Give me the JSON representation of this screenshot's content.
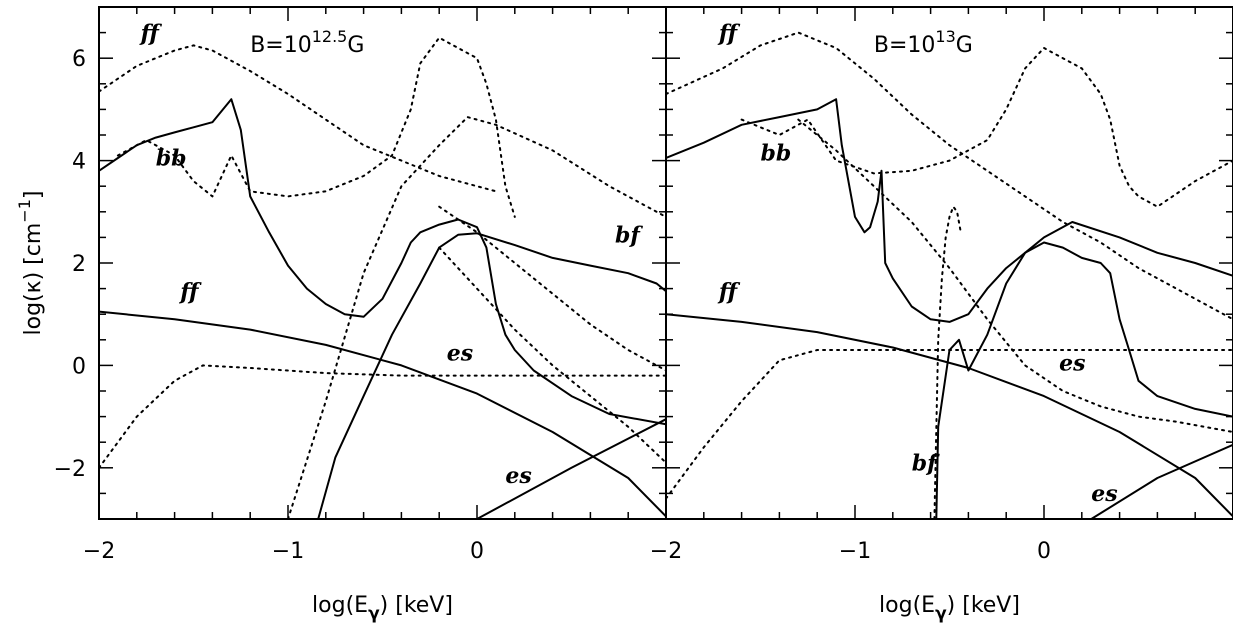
{
  "chart_data": [
    {
      "type": "line",
      "title_main": "B=10",
      "title_exp": "12.5",
      "title_unit": "G",
      "xlabel_pre": "log(E",
      "xlabel_sub": "γ",
      "xlabel_post": ")  [keV]",
      "ylabel_pre": "log(κ)  [cm",
      "ylabel_exp": "−1",
      "ylabel_post": "]",
      "xlim": [
        -2,
        1
      ],
      "ylim": [
        -3,
        7
      ],
      "xticks": [
        -2,
        -1,
        0
      ],
      "xticklabels": [
        "−2",
        "−1",
        "0"
      ],
      "yticks": [
        -2,
        0,
        2,
        4,
        6
      ],
      "yticklabels": [
        "−2",
        "0",
        "2",
        "4",
        "6"
      ],
      "annotations": [
        {
          "text": "ff",
          "x": -1.78,
          "y": 6.35
        },
        {
          "text": "bb",
          "x": -1.7,
          "y": 3.9
        },
        {
          "text": "bf",
          "x": 0.73,
          "y": 2.4
        },
        {
          "text": "ff",
          "x": -1.57,
          "y": 1.3
        },
        {
          "text": "es",
          "x": -0.16,
          "y": 0.1
        },
        {
          "text": "es",
          "x": 0.15,
          "y": -2.3
        }
      ],
      "series": [
        {
          "style": "solid",
          "x": [
            -2,
            -1.6,
            -1.2,
            -0.8,
            -0.4,
            0,
            0.4,
            0.8,
            1
          ],
          "y": [
            1.05,
            0.9,
            0.7,
            0.4,
            0.0,
            -0.55,
            -1.3,
            -2.2,
            -2.95
          ]
        },
        {
          "style": "solid",
          "x": [
            0,
            0.5,
            1
          ],
          "y": [
            -3,
            -2.0,
            -1.05
          ]
        },
        {
          "style": "solid",
          "x": [
            -0.84,
            -0.75,
            -0.6,
            -0.45,
            -0.3,
            -0.2,
            -0.1,
            0,
            0.2,
            0.4,
            0.6,
            0.8,
            0.95,
            1
          ],
          "y": [
            -3,
            -1.8,
            -0.6,
            0.6,
            1.6,
            2.3,
            2.55,
            2.58,
            2.35,
            2.1,
            1.95,
            1.8,
            1.6,
            1.45
          ]
        },
        {
          "style": "solid",
          "x": [
            -2,
            -1.9,
            -1.8,
            -1.7,
            -1.6,
            -1.5,
            -1.4,
            -1.3,
            -1.25,
            -1.2,
            -1.1,
            -1.0,
            -0.9,
            -0.8,
            -0.7,
            -0.6,
            -0.5,
            -0.4,
            -0.35,
            -0.3,
            -0.2,
            -0.1,
            0,
            0.05,
            0.1,
            0.15,
            0.2,
            0.3,
            0.5,
            0.7,
            1
          ],
          "y": [
            3.8,
            4.05,
            4.3,
            4.45,
            4.55,
            4.65,
            4.75,
            5.2,
            4.6,
            3.3,
            2.6,
            1.95,
            1.5,
            1.2,
            1.0,
            0.95,
            1.3,
            2.0,
            2.4,
            2.6,
            2.75,
            2.85,
            2.7,
            2.3,
            1.2,
            0.6,
            0.3,
            -0.1,
            -0.6,
            -0.95,
            -1.15
          ]
        },
        {
          "style": "dotted",
          "x": [
            -2,
            -1.8,
            -1.6,
            -1.5,
            -1.4,
            -1.2,
            -1.0,
            -0.8,
            -0.6,
            -0.4,
            -0.2,
            -0.1,
            0,
            0.1
          ],
          "y": [
            5.35,
            5.85,
            6.15,
            6.25,
            6.15,
            5.75,
            5.3,
            4.8,
            4.3,
            4.0,
            3.7,
            3.6,
            3.5,
            3.4
          ]
        },
        {
          "style": "dotted",
          "x": [
            -1.9,
            -1.75,
            -1.6,
            -1.5,
            -1.4,
            -1.3,
            -1.2,
            -1.0,
            -0.8,
            -0.6,
            -0.45,
            -0.35,
            -0.3,
            -0.2,
            -0.1,
            0,
            0.05,
            0.1,
            0.15,
            0.2
          ],
          "y": [
            4.1,
            4.4,
            4.1,
            3.6,
            3.3,
            4.1,
            3.4,
            3.3,
            3.4,
            3.7,
            4.1,
            5.0,
            5.9,
            6.4,
            6.2,
            6.0,
            5.5,
            4.8,
            3.5,
            2.9
          ]
        },
        {
          "style": "dotted",
          "x": [
            -1.0,
            -0.8,
            -0.6,
            -0.4,
            -0.2,
            -0.05,
            0.1,
            0.4,
            0.7,
            1.0
          ],
          "y": [
            -3,
            -0.7,
            1.8,
            3.5,
            4.3,
            4.85,
            4.7,
            4.2,
            3.5,
            2.9
          ]
        },
        {
          "style": "dotted",
          "x": [
            -0.2,
            0,
            0.2,
            0.4,
            0.6,
            0.8,
            1.0
          ],
          "y": [
            3.1,
            2.6,
            2.0,
            1.4,
            0.8,
            0.3,
            -0.1
          ]
        },
        {
          "style": "dotted",
          "x": [
            -0.2,
            0,
            0.2,
            0.4,
            0.6,
            0.8,
            1.0
          ],
          "y": [
            2.3,
            1.5,
            0.7,
            0.0,
            -0.6,
            -1.2,
            -1.9
          ]
        },
        {
          "style": "dotted",
          "x": [
            -2,
            -1.8,
            -1.6,
            -1.45,
            -1.2,
            -0.8,
            -0.4,
            0,
            0.5,
            1.0
          ],
          "y": [
            -2.0,
            -1.0,
            -0.3,
            0.0,
            -0.05,
            -0.15,
            -0.2,
            -0.2,
            -0.2,
            -0.2
          ]
        }
      ]
    },
    {
      "type": "line",
      "title_main": "B=10",
      "title_exp": "13",
      "title_unit": "G",
      "xlabel_pre": "log(E",
      "xlabel_sub": "γ",
      "xlabel_post": ")  [keV]",
      "xlim": [
        -2,
        1
      ],
      "ylim": [
        -3,
        7
      ],
      "xticks": [
        -2,
        -1,
        0
      ],
      "xticklabels": [
        "−2",
        "−1",
        "0"
      ],
      "yticks": [
        -2,
        0,
        2,
        4,
        6
      ],
      "annotations": [
        {
          "text": "ff",
          "x": -1.72,
          "y": 6.35
        },
        {
          "text": "bb",
          "x": -1.5,
          "y": 4.0
        },
        {
          "text": "ff",
          "x": -1.72,
          "y": 1.3
        },
        {
          "text": "es",
          "x": 0.08,
          "y": -0.1
        },
        {
          "text": "bf",
          "x": -0.7,
          "y": -2.05
        },
        {
          "text": "es",
          "x": 0.25,
          "y": -2.65
        }
      ],
      "series": [
        {
          "style": "solid",
          "x": [
            -2,
            -1.6,
            -1.2,
            -0.8,
            -0.4,
            0,
            0.4,
            0.8,
            1
          ],
          "y": [
            1.0,
            0.85,
            0.65,
            0.35,
            -0.05,
            -0.6,
            -1.3,
            -2.2,
            -2.95
          ]
        },
        {
          "style": "solid",
          "x": [
            0.25,
            0.6,
            1
          ],
          "y": [
            -3,
            -2.2,
            -1.55
          ]
        },
        {
          "style": "solid",
          "x": [
            -0.57,
            -0.56,
            -0.5,
            -0.45,
            -0.4,
            -0.3,
            -0.2,
            -0.1,
            0,
            0.15,
            0.4,
            0.6,
            0.8,
            1
          ],
          "y": [
            -3,
            -1.2,
            0.3,
            0.5,
            -0.1,
            0.6,
            1.6,
            2.2,
            2.5,
            2.8,
            2.5,
            2.2,
            2.0,
            1.75
          ]
        },
        {
          "style": "solid",
          "x": [
            -2,
            -1.8,
            -1.6,
            -1.4,
            -1.2,
            -1.1,
            -1.07,
            -1.0,
            -0.95,
            -0.92,
            -0.88,
            -0.86,
            -0.84,
            -0.8,
            -0.7,
            -0.6,
            -0.5,
            -0.4,
            -0.3,
            -0.2,
            -0.1,
            0,
            0.1,
            0.2,
            0.3,
            0.35,
            0.4,
            0.45,
            0.5,
            0.6,
            0.8,
            1
          ],
          "y": [
            4.05,
            4.35,
            4.7,
            4.85,
            5.0,
            5.2,
            4.3,
            2.9,
            2.6,
            2.7,
            3.2,
            3.8,
            2.0,
            1.7,
            1.15,
            0.9,
            0.85,
            1.0,
            1.5,
            1.9,
            2.2,
            2.4,
            2.3,
            2.1,
            2.0,
            1.8,
            0.9,
            0.3,
            -0.3,
            -0.6,
            -0.85,
            -1.0
          ]
        },
        {
          "style": "dotted",
          "x": [
            -2,
            -1.7,
            -1.5,
            -1.3,
            -1.1,
            -0.9,
            -0.7,
            -0.5,
            -0.3,
            -0.1,
            0.1,
            0.3,
            0.5,
            0.7,
            1.0
          ],
          "y": [
            5.3,
            5.8,
            6.25,
            6.5,
            6.2,
            5.6,
            4.9,
            4.3,
            3.8,
            3.3,
            2.8,
            2.4,
            1.9,
            1.5,
            0.9
          ]
        },
        {
          "style": "dotted",
          "x": [
            -1.6,
            -1.4,
            -1.25,
            -1.1,
            -0.9,
            -0.7,
            -0.5,
            -0.3,
            -0.2,
            -0.1,
            0,
            0.1,
            0.2,
            0.3,
            0.35,
            0.4,
            0.45,
            0.5,
            0.6,
            0.8,
            1.0
          ],
          "y": [
            4.8,
            4.5,
            4.8,
            4.0,
            3.75,
            3.8,
            4.0,
            4.4,
            5.0,
            5.8,
            6.2,
            6.0,
            5.8,
            5.3,
            4.8,
            3.9,
            3.5,
            3.3,
            3.1,
            3.6,
            4.0
          ]
        },
        {
          "style": "dotted",
          "x": [
            -1.3,
            -1.1,
            -0.9,
            -0.7,
            -0.5,
            -0.3,
            -0.1,
            0.1,
            0.3,
            0.5,
            0.7,
            1.0
          ],
          "y": [
            4.8,
            4.2,
            3.5,
            2.8,
            1.9,
            0.9,
            0.0,
            -0.5,
            -0.8,
            -1.0,
            -1.1,
            -1.3
          ]
        },
        {
          "style": "dotted",
          "x": [
            -0.58,
            -0.56,
            -0.54,
            -0.52,
            -0.5,
            -0.48,
            -0.46,
            -0.44
          ],
          "y": [
            -3,
            0.5,
            1.7,
            2.5,
            2.9,
            3.1,
            3.0,
            2.6
          ]
        },
        {
          "style": "dotted",
          "x": [
            -2,
            -1.8,
            -1.6,
            -1.4,
            -1.2,
            -1.0,
            -0.5,
            0,
            0.5,
            1.0
          ],
          "y": [
            -2.6,
            -1.6,
            -0.7,
            0.1,
            0.3,
            0.3,
            0.3,
            0.3,
            0.3,
            0.3
          ]
        }
      ]
    }
  ]
}
